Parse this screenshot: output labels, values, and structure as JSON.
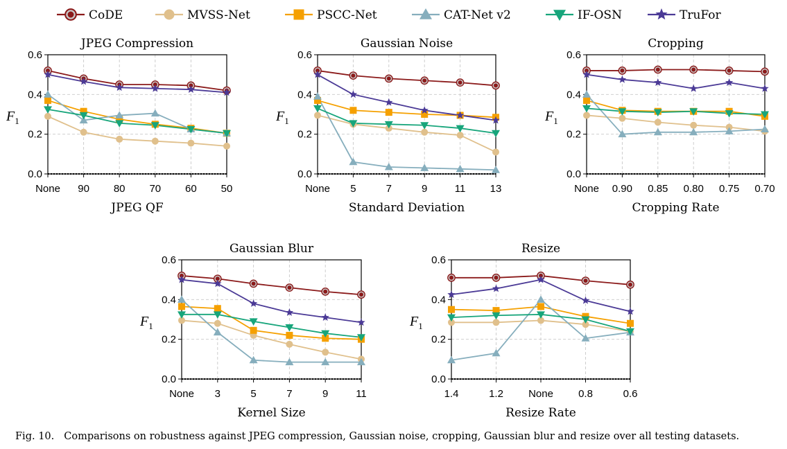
{
  "caption": {
    "label": "Fig. 10.",
    "text": "Comparisons on robustness against JPEG compression, Gaussian noise, cropping, Gaussian blur and resize over all testing datasets."
  },
  "legend": [
    {
      "name": "CoDE",
      "color": "#8b1a1a",
      "marker": "circle-dot"
    },
    {
      "name": "MVSS-Net",
      "color": "#e0c08c",
      "marker": "circle"
    },
    {
      "name": "PSCC-Net",
      "color": "#f5a000",
      "marker": "square"
    },
    {
      "name": "CAT-Net v2",
      "color": "#86aebd",
      "marker": "triangle-up"
    },
    {
      "name": "IF-OSN",
      "color": "#17a57b",
      "marker": "triangle-down"
    },
    {
      "name": "TruFor",
      "color": "#4b3a96",
      "marker": "star"
    }
  ],
  "chart_data": [
    {
      "type": "line",
      "title": "JPEG Compression",
      "xlabel": "JPEG QF",
      "ylabel": "F1",
      "ylim": [
        0,
        0.6
      ],
      "yticks": [
        "0.0",
        "0.2",
        "0.4",
        "0.6"
      ],
      "categories": [
        "None",
        "90",
        "80",
        "70",
        "60",
        "50"
      ],
      "series": [
        {
          "name": "CoDE",
          "values": [
            0.52,
            0.48,
            0.45,
            0.45,
            0.445,
            0.42
          ]
        },
        {
          "name": "MVSS-Net",
          "values": [
            0.29,
            0.21,
            0.175,
            0.165,
            0.155,
            0.14
          ]
        },
        {
          "name": "PSCC-Net",
          "values": [
            0.37,
            0.315,
            0.275,
            0.25,
            0.23,
            0.205
          ]
        },
        {
          "name": "CAT-Net v2",
          "values": [
            0.4,
            0.27,
            0.295,
            0.305,
            0.225,
            0.205
          ]
        },
        {
          "name": "IF-OSN",
          "values": [
            0.325,
            0.295,
            0.255,
            0.245,
            0.225,
            0.205
          ]
        },
        {
          "name": "TruFor",
          "values": [
            0.5,
            0.465,
            0.435,
            0.43,
            0.425,
            0.41
          ]
        }
      ]
    },
    {
      "type": "line",
      "title": "Gaussian Noise",
      "xlabel": "Standard Deviation",
      "ylabel": "F1",
      "ylim": [
        0,
        0.6
      ],
      "yticks": [
        "0.0",
        "0.2",
        "0.4",
        "0.6"
      ],
      "categories": [
        "None",
        "5",
        "7",
        "9",
        "11",
        "13"
      ],
      "series": [
        {
          "name": "CoDE",
          "values": [
            0.52,
            0.495,
            0.48,
            0.47,
            0.46,
            0.445
          ]
        },
        {
          "name": "MVSS-Net",
          "values": [
            0.295,
            0.25,
            0.23,
            0.21,
            0.195,
            0.11
          ]
        },
        {
          "name": "PSCC-Net",
          "values": [
            0.37,
            0.32,
            0.31,
            0.3,
            0.295,
            0.285
          ]
        },
        {
          "name": "CAT-Net v2",
          "values": [
            0.39,
            0.06,
            0.035,
            0.03,
            0.025,
            0.02
          ]
        },
        {
          "name": "IF-OSN",
          "values": [
            0.33,
            0.255,
            0.25,
            0.245,
            0.23,
            0.205
          ]
        },
        {
          "name": "TruFor",
          "values": [
            0.5,
            0.4,
            0.36,
            0.32,
            0.295,
            0.27
          ]
        }
      ]
    },
    {
      "type": "line",
      "title": "Cropping",
      "xlabel": "Cropping Rate",
      "ylabel": "F1",
      "ylim": [
        0,
        0.6
      ],
      "yticks": [
        "0.0",
        "0.2",
        "0.4",
        "0.6"
      ],
      "categories": [
        "None",
        "0.90",
        "0.85",
        "0.80",
        "0.75",
        "0.70"
      ],
      "series": [
        {
          "name": "CoDE",
          "values": [
            0.52,
            0.52,
            0.525,
            0.525,
            0.52,
            0.515
          ]
        },
        {
          "name": "MVSS-Net",
          "values": [
            0.295,
            0.28,
            0.26,
            0.245,
            0.235,
            0.215
          ]
        },
        {
          "name": "PSCC-Net",
          "values": [
            0.37,
            0.32,
            0.315,
            0.315,
            0.315,
            0.29
          ]
        },
        {
          "name": "CAT-Net v2",
          "values": [
            0.4,
            0.2,
            0.21,
            0.21,
            0.215,
            0.225
          ]
        },
        {
          "name": "IF-OSN",
          "values": [
            0.33,
            0.315,
            0.31,
            0.315,
            0.305,
            0.3
          ]
        },
        {
          "name": "TruFor",
          "values": [
            0.5,
            0.475,
            0.46,
            0.43,
            0.46,
            0.43
          ]
        }
      ]
    },
    {
      "type": "line",
      "title": "Gaussian Blur",
      "xlabel": "Kernel Size",
      "ylabel": "F1",
      "ylim": [
        0,
        0.6
      ],
      "yticks": [
        "0.0",
        "0.2",
        "0.4",
        "0.6"
      ],
      "categories": [
        "None",
        "3",
        "5",
        "7",
        "9",
        "11"
      ],
      "series": [
        {
          "name": "CoDE",
          "values": [
            0.52,
            0.505,
            0.48,
            0.46,
            0.44,
            0.425
          ]
        },
        {
          "name": "MVSS-Net",
          "values": [
            0.295,
            0.28,
            0.22,
            0.175,
            0.135,
            0.1
          ]
        },
        {
          "name": "PSCC-Net",
          "values": [
            0.365,
            0.355,
            0.245,
            0.22,
            0.205,
            0.2
          ]
        },
        {
          "name": "CAT-Net v2",
          "values": [
            0.4,
            0.235,
            0.095,
            0.085,
            0.085,
            0.085
          ]
        },
        {
          "name": "IF-OSN",
          "values": [
            0.325,
            0.325,
            0.29,
            0.26,
            0.23,
            0.21
          ]
        },
        {
          "name": "TruFor",
          "values": [
            0.5,
            0.48,
            0.38,
            0.335,
            0.31,
            0.285
          ]
        }
      ]
    },
    {
      "type": "line",
      "title": "Resize",
      "xlabel": "Resize Rate",
      "ylabel": "F1",
      "ylim": [
        0,
        0.6
      ],
      "yticks": [
        "0.0",
        "0.2",
        "0.4",
        "0.6"
      ],
      "categories": [
        "1.4",
        "1.2",
        "None",
        "0.8",
        "0.6"
      ],
      "series": [
        {
          "name": "CoDE",
          "values": [
            0.51,
            0.51,
            0.52,
            0.495,
            0.475
          ]
        },
        {
          "name": "MVSS-Net",
          "values": [
            0.285,
            0.285,
            0.295,
            0.275,
            0.24
          ]
        },
        {
          "name": "PSCC-Net",
          "values": [
            0.35,
            0.345,
            0.365,
            0.315,
            0.28
          ]
        },
        {
          "name": "CAT-Net v2",
          "values": [
            0.095,
            0.13,
            0.4,
            0.205,
            0.235
          ]
        },
        {
          "name": "IF-OSN",
          "values": [
            0.31,
            0.32,
            0.325,
            0.3,
            0.24
          ]
        },
        {
          "name": "TruFor",
          "values": [
            0.425,
            0.455,
            0.5,
            0.395,
            0.34
          ]
        }
      ]
    }
  ]
}
